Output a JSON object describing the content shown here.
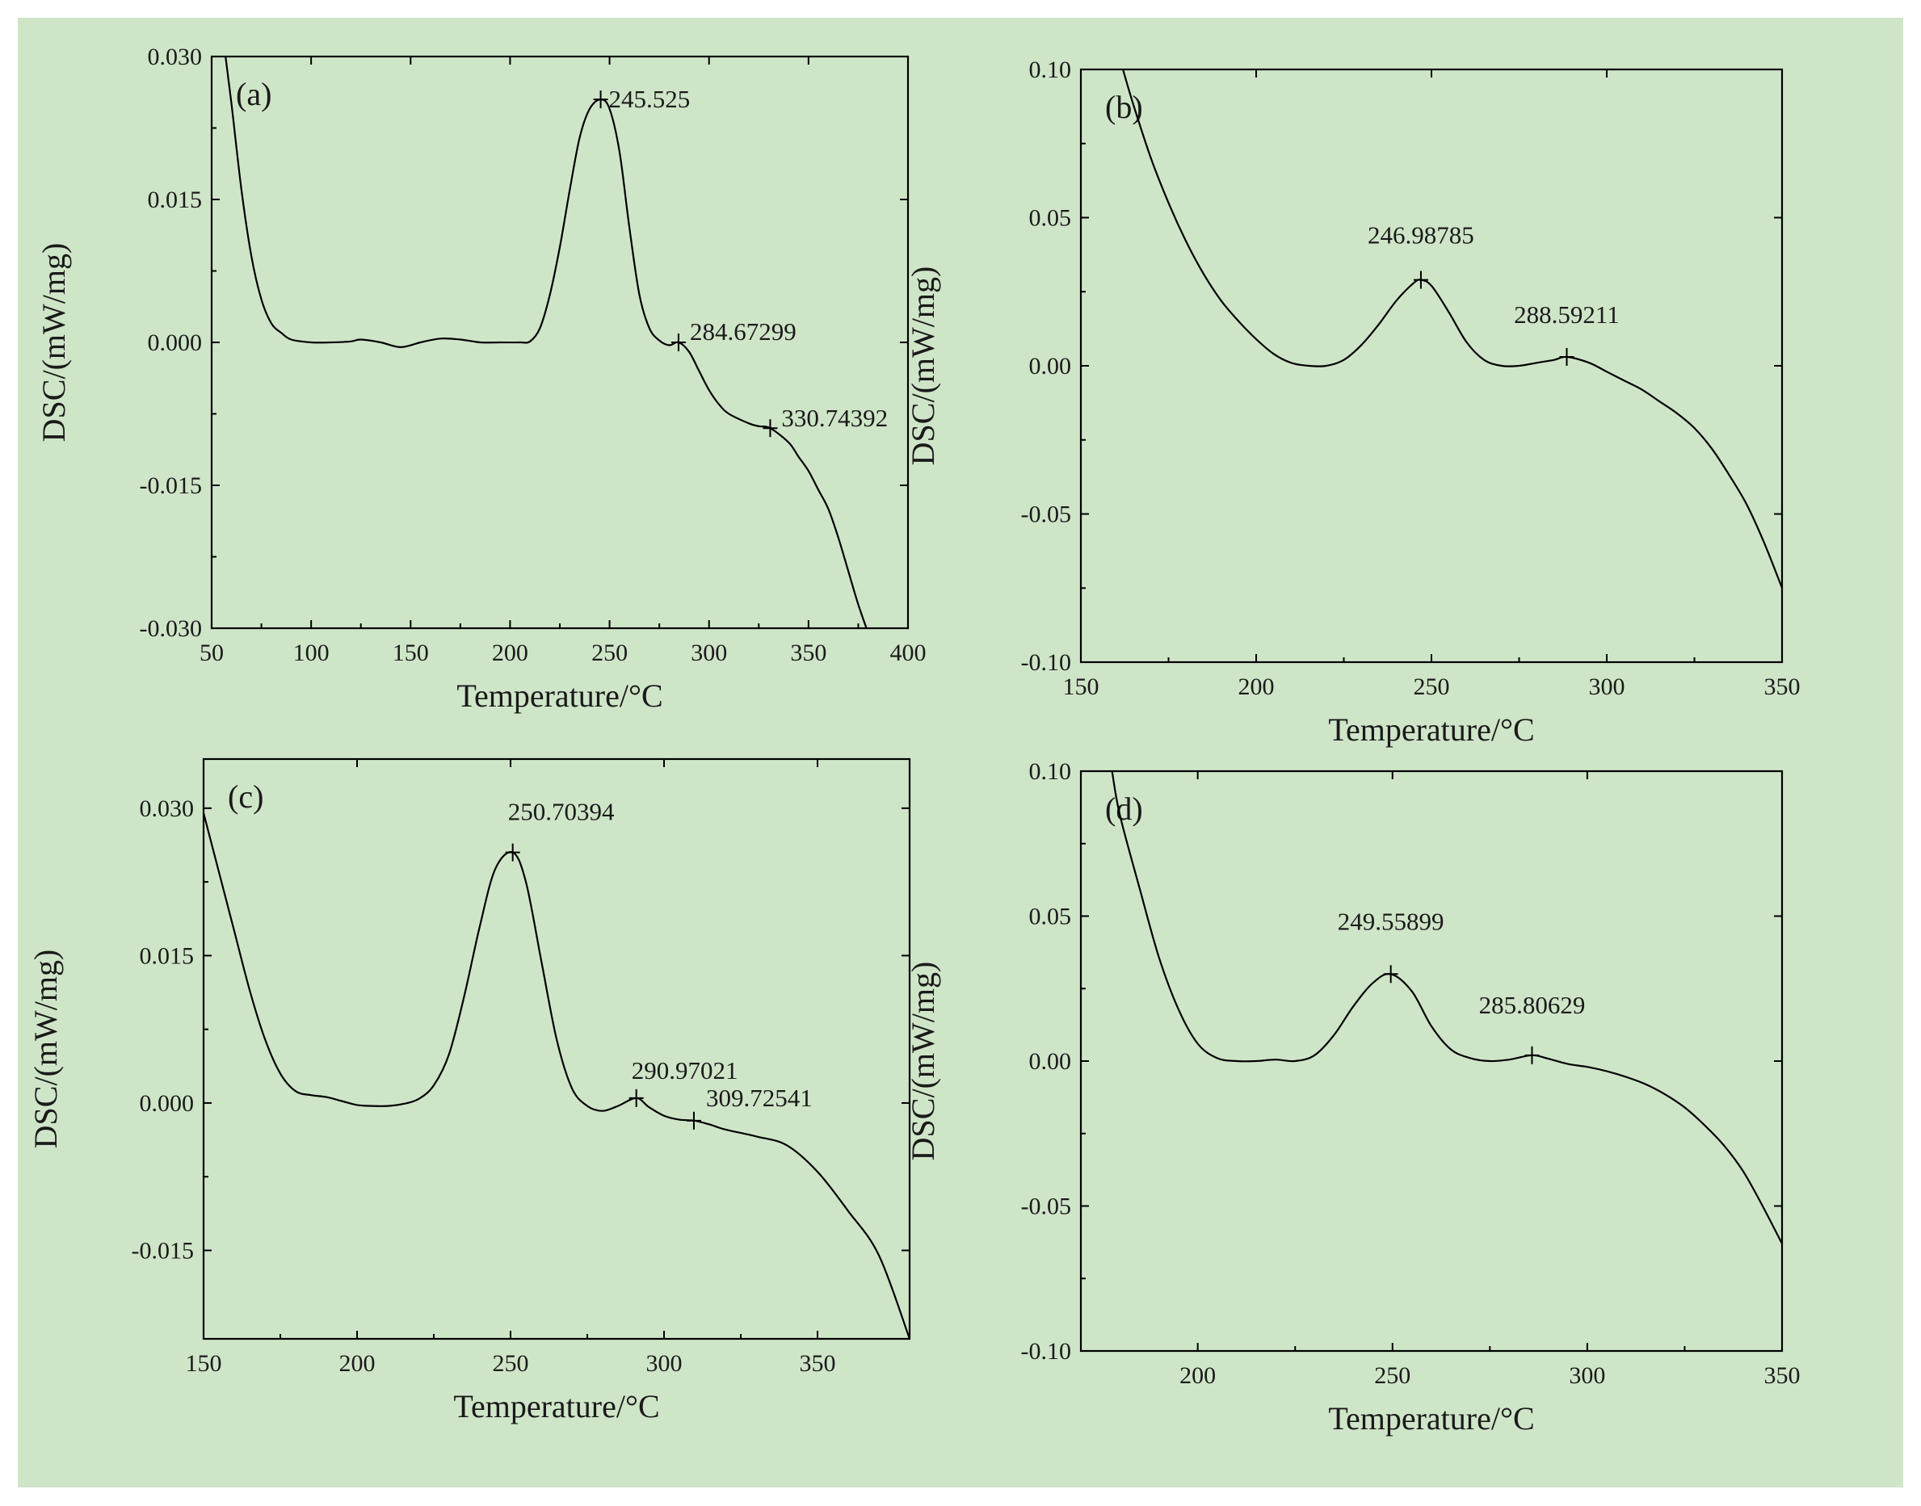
{
  "figure": {
    "background": "#cfe5c8",
    "line_color": "#000000"
  },
  "chart_data": [
    {
      "id": "a",
      "type": "line",
      "panel_label": "(a)",
      "xlabel": "Temperature/°C",
      "ylabel": "DSC/(mW/mg)",
      "xlim": [
        50,
        400
      ],
      "ylim": [
        -0.03,
        0.03
      ],
      "xticks": [
        50,
        100,
        150,
        200,
        250,
        300,
        350,
        400
      ],
      "xtick_labels": [
        "50",
        "100",
        "150",
        "200",
        "250",
        "300",
        "350",
        "400"
      ],
      "yticks": [
        0.03,
        0.015,
        0.0,
        -0.015,
        -0.03
      ],
      "ytick_labels": [
        "0.030",
        "0.015",
        "0.000",
        "-0.015",
        "-0.030"
      ],
      "x": [
        57,
        60,
        65,
        70,
        75,
        80,
        85,
        90,
        100,
        110,
        120,
        125,
        135,
        145,
        155,
        165,
        175,
        185,
        195,
        205,
        210,
        215,
        220,
        225,
        230,
        235,
        240,
        245.5,
        250,
        255,
        260,
        265,
        270,
        275,
        280,
        284.7,
        290,
        295,
        300,
        305,
        310,
        320,
        325,
        330.7,
        340,
        345,
        350,
        355,
        360,
        365,
        370,
        375,
        380
      ],
      "y": [
        0.03,
        0.025,
        0.016,
        0.009,
        0.0045,
        0.002,
        0.001,
        0.0003,
        0.0,
        0.0,
        0.0001,
        0.0003,
        0.0,
        -0.0005,
        0.0,
        0.0004,
        0.0003,
        0.0,
        0.0,
        0.0,
        0.0001,
        0.0015,
        0.005,
        0.01,
        0.016,
        0.0215,
        0.0245,
        0.0255,
        0.0245,
        0.02,
        0.012,
        0.005,
        0.0015,
        0.0002,
        -0.0003,
        0.0,
        -0.001,
        -0.003,
        -0.005,
        -0.0065,
        -0.0075,
        -0.0085,
        -0.0088,
        -0.009,
        -0.0105,
        -0.012,
        -0.0135,
        -0.0155,
        -0.0175,
        -0.0205,
        -0.024,
        -0.0275,
        -0.0305
      ],
      "peaks": [
        {
          "x": 245.525,
          "y": 0.0255,
          "label": "245.525"
        },
        {
          "x": 284.67299,
          "y": 0.0,
          "label": "284.67299"
        },
        {
          "x": 330.74392,
          "y": -0.009,
          "label": "330.74392"
        }
      ]
    },
    {
      "id": "b",
      "type": "line",
      "panel_label": "(b)",
      "xlabel": "Temperature/°C",
      "ylabel": "DSC/(mW/mg)",
      "xlim": [
        150,
        350
      ],
      "ylim": [
        -0.1,
        0.1
      ],
      "xticks": [
        150,
        200,
        250,
        300,
        350
      ],
      "xtick_labels": [
        "150",
        "200",
        "250",
        "300",
        "350"
      ],
      "yticks": [
        0.1,
        0.05,
        0.0,
        -0.05,
        -0.1
      ],
      "ytick_labels": [
        "0.10",
        "0.05",
        "0.00",
        "-0.05",
        "-0.10"
      ],
      "x": [
        162,
        165,
        170,
        175,
        180,
        185,
        190,
        195,
        200,
        205,
        210,
        215,
        220,
        225,
        230,
        235,
        240,
        245,
        247,
        250,
        255,
        260,
        265,
        270,
        275,
        280,
        285,
        288.6,
        295,
        300,
        305,
        310,
        315,
        320,
        325,
        330,
        335,
        340,
        345,
        350
      ],
      "y": [
        0.1,
        0.088,
        0.07,
        0.055,
        0.042,
        0.031,
        0.022,
        0.015,
        0.009,
        0.004,
        0.001,
        0.0,
        0.0,
        0.002,
        0.007,
        0.014,
        0.022,
        0.028,
        0.029,
        0.027,
        0.018,
        0.008,
        0.002,
        0.0,
        0.0,
        0.001,
        0.002,
        0.003,
        0.001,
        -0.002,
        -0.005,
        -0.008,
        -0.012,
        -0.016,
        -0.021,
        -0.028,
        -0.037,
        -0.047,
        -0.06,
        -0.075
      ],
      "peaks": [
        {
          "x": 246.98785,
          "y": 0.029,
          "label": "246.98785"
        },
        {
          "x": 288.59211,
          "y": 0.003,
          "label": "288.59211"
        }
      ]
    },
    {
      "id": "c",
      "type": "line",
      "panel_label": "(c)",
      "xlabel": "Temperature/°C",
      "ylabel": "DSC/(mW/mg)",
      "xlim": [
        150,
        380
      ],
      "ylim": [
        -0.024,
        0.035
      ],
      "xticks": [
        150,
        200,
        250,
        300,
        350
      ],
      "xtick_labels": [
        "150",
        "200",
        "250",
        "300",
        "350"
      ],
      "yticks": [
        0.03,
        0.015,
        0.0,
        -0.015
      ],
      "ytick_labels": [
        "0.030",
        "0.015",
        "0.000",
        "-0.015"
      ],
      "x": [
        150,
        155,
        160,
        165,
        170,
        175,
        180,
        185,
        190,
        195,
        200,
        205,
        210,
        215,
        220,
        225,
        230,
        235,
        240,
        245,
        250.7,
        255,
        260,
        265,
        270,
        275,
        280,
        285,
        291,
        295,
        300,
        305,
        310,
        315,
        320,
        330,
        340,
        350,
        360,
        370,
        380
      ],
      "y": [
        0.0295,
        0.0235,
        0.0175,
        0.0115,
        0.0065,
        0.003,
        0.0012,
        0.0008,
        0.0006,
        0.0002,
        -0.0002,
        -0.0003,
        -0.0003,
        -0.0001,
        0.0004,
        0.0018,
        0.005,
        0.011,
        0.018,
        0.0238,
        0.0255,
        0.0225,
        0.0145,
        0.0065,
        0.0015,
        -0.0003,
        -0.0008,
        -0.0003,
        0.0005,
        -0.0004,
        -0.0013,
        -0.0017,
        -0.0018,
        -0.0022,
        -0.0027,
        -0.0034,
        -0.0043,
        -0.007,
        -0.011,
        -0.0155,
        -0.024
      ],
      "peaks": [
        {
          "x": 250.70394,
          "y": 0.0255,
          "label": "250.70394"
        },
        {
          "x": 290.97021,
          "y": 0.0005,
          "label": "290.97021"
        },
        {
          "x": 309.72541,
          "y": -0.0018,
          "label": "309.72541"
        }
      ]
    },
    {
      "id": "d",
      "type": "line",
      "panel_label": "(d)",
      "xlabel": "Temperature/°C",
      "ylabel": "DSC/(mW/mg)",
      "xlim": [
        170,
        350
      ],
      "ylim": [
        -0.1,
        0.1
      ],
      "xticks": [
        200,
        250,
        300,
        350
      ],
      "xtick_labels": [
        "200",
        "250",
        "300",
        "350"
      ],
      "yticks": [
        0.1,
        0.05,
        0.0,
        -0.05,
        -0.1
      ],
      "ytick_labels": [
        "0.10",
        "0.05",
        "0.00",
        "-0.05",
        "-0.10"
      ],
      "x": [
        178,
        180,
        185,
        190,
        195,
        200,
        205,
        210,
        215,
        220,
        225,
        230,
        235,
        240,
        245,
        249.6,
        255,
        260,
        265,
        270,
        275,
        280,
        285.8,
        290,
        295,
        300,
        305,
        310,
        315,
        320,
        325,
        330,
        335,
        340,
        345,
        350
      ],
      "y": [
        0.1,
        0.085,
        0.06,
        0.036,
        0.018,
        0.006,
        0.001,
        0.0,
        0.0,
        0.0005,
        0.0,
        0.002,
        0.009,
        0.019,
        0.027,
        0.03,
        0.024,
        0.012,
        0.004,
        0.001,
        0.0,
        0.0005,
        0.002,
        0.0008,
        -0.001,
        -0.002,
        -0.0035,
        -0.0055,
        -0.008,
        -0.0115,
        -0.016,
        -0.022,
        -0.029,
        -0.038,
        -0.05,
        -0.063
      ],
      "peaks": [
        {
          "x": 249.55899,
          "y": 0.03,
          "label": "249.55899"
        },
        {
          "x": 285.80629,
          "y": 0.002,
          "label": "285.80629"
        }
      ]
    }
  ]
}
